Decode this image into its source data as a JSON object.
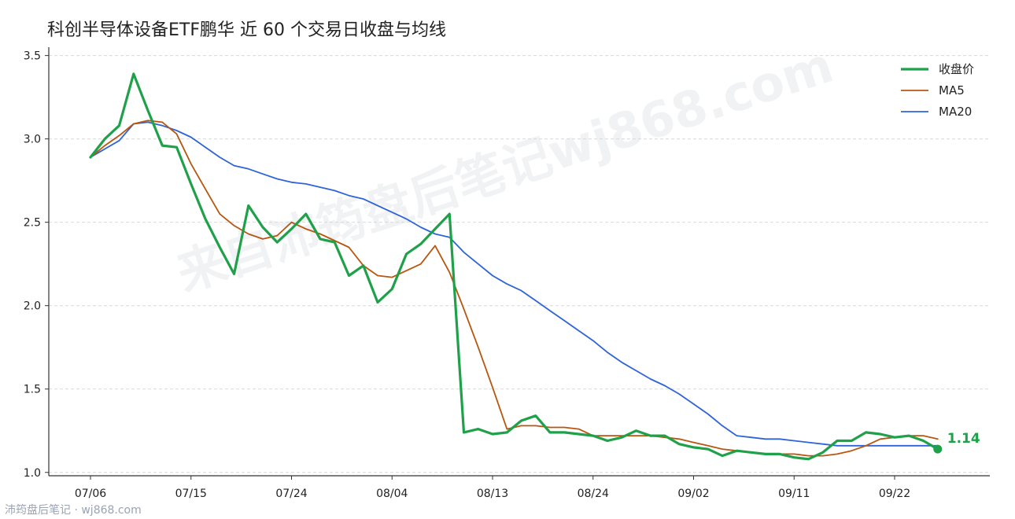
{
  "title": "科创半导体设备ETF鹏华 近 60 个交易日收盘与均线",
  "watermark": "来自沛筠盘后笔记wj868.com",
  "footer": "沛筠盘后笔记 · wj868.com",
  "colors": {
    "close": "#1fa14a",
    "ma5": "#b8560f",
    "ma20": "#2e64d8"
  },
  "chart_data": {
    "type": "line",
    "title": "科创半导体设备ETF鹏华 近 60 个交易日收盘与均线",
    "x_ticks": [
      "07/06",
      "07/15",
      "07/24",
      "08/04",
      "08/13",
      "08/24",
      "09/02",
      "09/11",
      "09/22"
    ],
    "x_tick_index": [
      0,
      7,
      14,
      21,
      28,
      35,
      42,
      49,
      56
    ],
    "yticks": [
      "1.0",
      "1.5",
      "2.0",
      "2.5",
      "3.0",
      "3.5"
    ],
    "ylim": [
      0.98,
      3.55
    ],
    "grid": "horizontal dashed",
    "legend_position": "top-right",
    "last_value_label": "1.14",
    "series": [
      {
        "name": "收盘价",
        "key": "close",
        "values": [
          2.89,
          3.0,
          3.08,
          3.39,
          3.17,
          2.96,
          2.95,
          2.73,
          2.52,
          2.35,
          2.19,
          2.6,
          2.47,
          2.38,
          2.46,
          2.55,
          2.4,
          2.38,
          2.18,
          2.24,
          2.02,
          2.1,
          2.31,
          2.37,
          2.46,
          2.55,
          1.24,
          1.26,
          1.23,
          1.24,
          1.31,
          1.34,
          1.24,
          1.24,
          1.23,
          1.22,
          1.19,
          1.21,
          1.25,
          1.22,
          1.22,
          1.17,
          1.15,
          1.14,
          1.1,
          1.13,
          1.12,
          1.11,
          1.11,
          1.09,
          1.08,
          1.12,
          1.19,
          1.19,
          1.24,
          1.23,
          1.21,
          1.22,
          1.19,
          1.14
        ]
      },
      {
        "name": "MA5",
        "key": "ma5",
        "values": [
          2.89,
          2.96,
          3.02,
          3.09,
          3.11,
          3.1,
          3.03,
          2.85,
          2.7,
          2.55,
          2.48,
          2.43,
          2.4,
          2.42,
          2.5,
          2.46,
          2.43,
          2.39,
          2.35,
          2.24,
          2.18,
          2.17,
          2.21,
          2.25,
          2.36,
          2.2,
          1.98,
          1.75,
          1.51,
          1.26,
          1.28,
          1.28,
          1.27,
          1.27,
          1.26,
          1.22,
          1.22,
          1.22,
          1.22,
          1.22,
          1.21,
          1.2,
          1.18,
          1.16,
          1.14,
          1.13,
          1.12,
          1.11,
          1.11,
          1.11,
          1.1,
          1.1,
          1.11,
          1.13,
          1.16,
          1.2,
          1.21,
          1.22,
          1.22,
          1.2
        ]
      },
      {
        "name": "MA20",
        "key": "ma20",
        "values": [
          2.89,
          2.94,
          2.99,
          3.09,
          3.1,
          3.08,
          3.05,
          3.01,
          2.95,
          2.89,
          2.84,
          2.82,
          2.79,
          2.76,
          2.74,
          2.73,
          2.71,
          2.69,
          2.66,
          2.64,
          2.6,
          2.56,
          2.52,
          2.47,
          2.43,
          2.41,
          2.32,
          2.25,
          2.18,
          2.13,
          2.09,
          2.03,
          1.97,
          1.91,
          1.85,
          1.79,
          1.72,
          1.66,
          1.61,
          1.56,
          1.52,
          1.47,
          1.41,
          1.35,
          1.28,
          1.22,
          1.21,
          1.2,
          1.2,
          1.19,
          1.18,
          1.17,
          1.16,
          1.16,
          1.16,
          1.16,
          1.16,
          1.16,
          1.16,
          1.16
        ]
      }
    ]
  }
}
